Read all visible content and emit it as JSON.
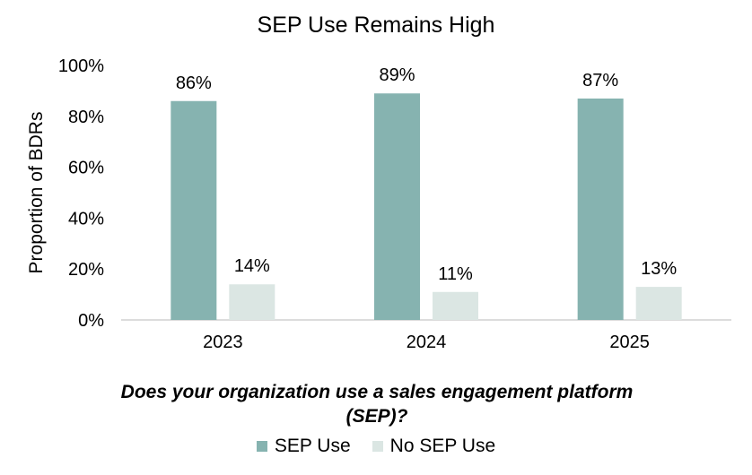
{
  "chart_data": {
    "type": "bar",
    "title": "SEP Use Remains High",
    "xlabel": "Does your organization use a sales engagement platform (SEP)?",
    "ylabel": "Proportion of BDRs",
    "categories": [
      "2023",
      "2024",
      "2025"
    ],
    "series": [
      {
        "name": "SEP Use",
        "values": [
          86,
          89,
          87
        ],
        "labels": [
          "86%",
          "89%",
          "87%"
        ],
        "color": "#86b3b0"
      },
      {
        "name": "No SEP Use",
        "values": [
          14,
          11,
          13
        ],
        "labels": [
          "14%",
          "11%",
          "13%"
        ],
        "color": "#dbe6e3"
      }
    ],
    "ylim": [
      0,
      100
    ],
    "yticks": [
      "0%",
      "20%",
      "40%",
      "60%",
      "80%",
      "100%"
    ],
    "grid": false,
    "legend_position": "bottom"
  }
}
